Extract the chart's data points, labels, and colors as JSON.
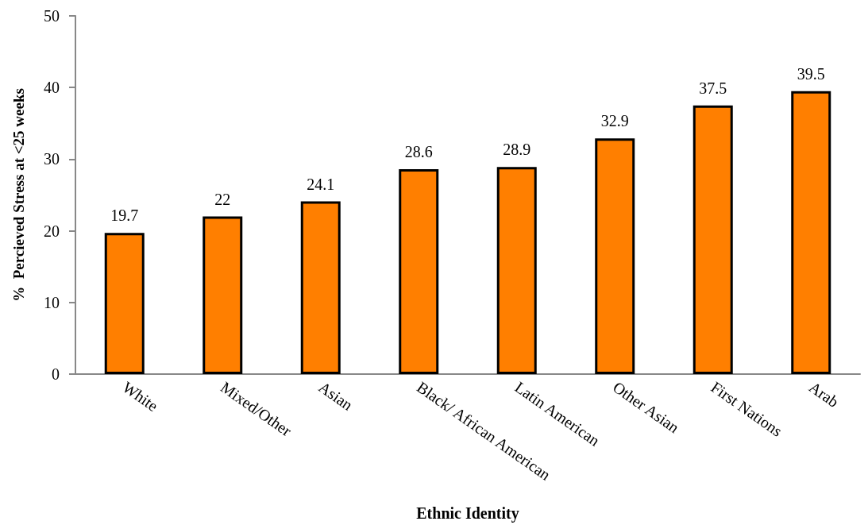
{
  "chart_data": {
    "type": "bar",
    "xlabel": "Ethnic Identity",
    "ylabel": "%  Percieved Stress at <25 weeks",
    "categories": [
      "White",
      "Mixed/Other",
      "Asian",
      "Black/ African American",
      "Latin American",
      "Other Asian",
      "First Nations",
      "Arab"
    ],
    "values": [
      19.7,
      22,
      24.1,
      28.6,
      28.9,
      32.9,
      37.5,
      39.5
    ],
    "color": "#ff7f00",
    "ylim": [
      0,
      50
    ],
    "yticks": [
      0,
      10,
      20,
      30,
      40,
      50
    ],
    "grid": false,
    "data_labels": true
  }
}
